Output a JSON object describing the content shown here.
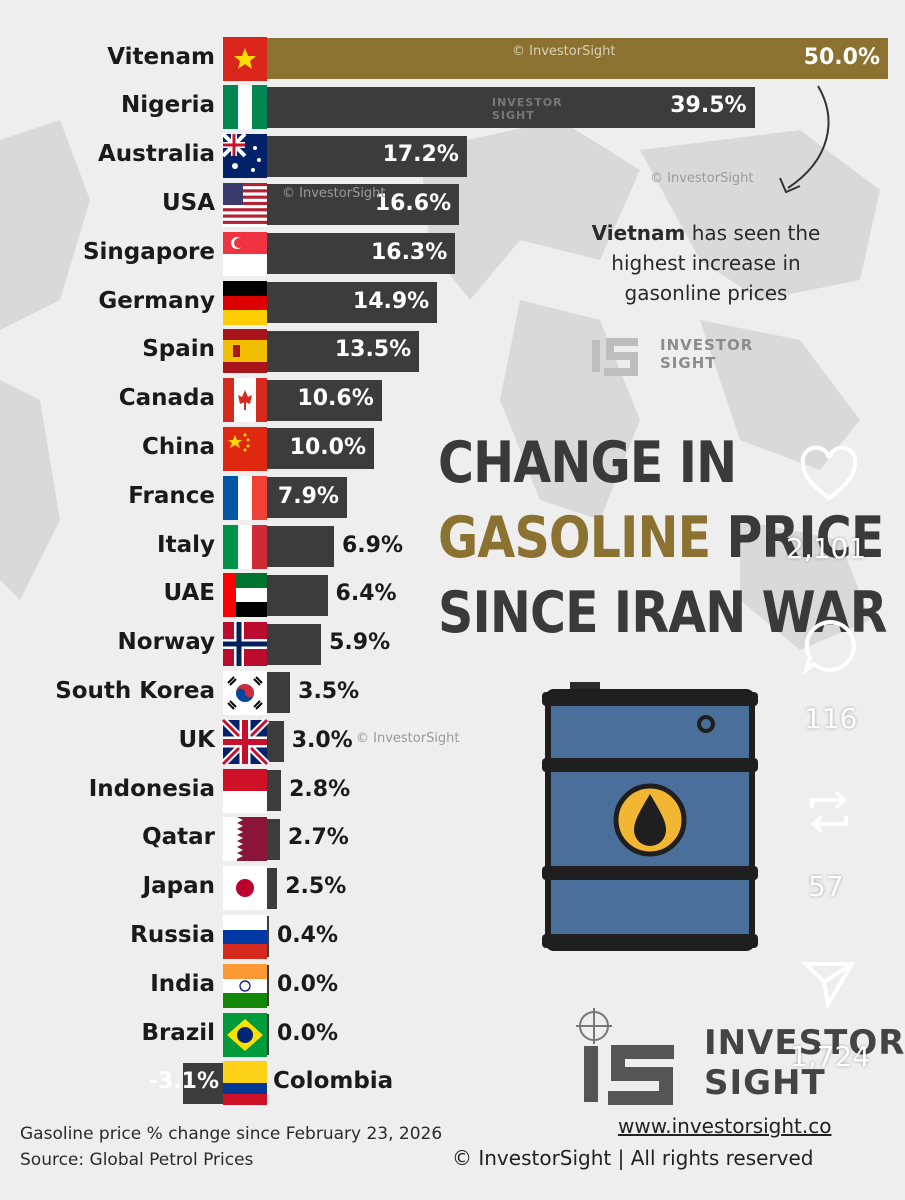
{
  "title": {
    "line1": "CHANGE IN",
    "line2_highlight": "GASOLINE",
    "line2_rest": " PRICE",
    "line3": "SINCE IRAN WAR"
  },
  "annotation": {
    "bold": "Vietnam",
    "text": " has seen the highest increase in gasonline prices"
  },
  "watermarks": {
    "text": "© InvestorSight",
    "logo_small": "INVESTOR SIGHT"
  },
  "brand": {
    "line1": "INVESTOR",
    "line2": "SIGHT",
    "website": "www.investorsight.co",
    "copyright": "© InvestorSight |  All rights reserved"
  },
  "footer": {
    "note": "Gasoline price % change since February 23, 2026",
    "source": "Source: Global Petrol Prices"
  },
  "social_overlay": {
    "likes": "2,101",
    "comments": "116",
    "reposts": "57",
    "shares": "1,724"
  },
  "colors": {
    "bar_default": "#3c3c3c",
    "bar_highlight": "#8b7230",
    "title_gold": "#8b7230",
    "barrel_blue": "#4a6f9b"
  },
  "chart_data": {
    "type": "bar",
    "orientation": "horizontal",
    "categories": [
      "Vitenam",
      "Nigeria",
      "Australia",
      "USA",
      "Singapore",
      "Germany",
      "Spain",
      "Canada",
      "China",
      "France",
      "Italy",
      "UAE",
      "Norway",
      "South Korea",
      "UK",
      "Indonesia",
      "Qatar",
      "Japan",
      "Russia",
      "India",
      "Brazil",
      "Colombia"
    ],
    "values": [
      50.0,
      39.5,
      17.2,
      16.6,
      16.3,
      14.9,
      13.5,
      10.6,
      10.0,
      7.9,
      6.9,
      6.4,
      5.9,
      3.5,
      3.0,
      2.8,
      2.7,
      2.5,
      0.4,
      0.0,
      0.0,
      -3.1
    ],
    "labels": [
      "50.0%",
      "39.5%",
      "17.2%",
      "16.6%",
      "16.3%",
      "14.9%",
      "13.5%",
      "10.6%",
      "10.0%",
      "7.9%",
      "6.9%",
      "6.4%",
      "5.9%",
      "3.5%",
      "3.0%",
      "2.8%",
      "2.7%",
      "2.5%",
      "0.4%",
      "0.0%",
      "0.0%",
      "-3.1%"
    ],
    "flags": [
      "vn",
      "ng",
      "au",
      "us",
      "sg",
      "de",
      "es",
      "ca",
      "cn",
      "fr",
      "it",
      "ae",
      "no",
      "kr",
      "uk",
      "id",
      "qa",
      "jp",
      "ru",
      "in",
      "br",
      "co"
    ],
    "highlight_index": 0,
    "title": "",
    "xlabel": "",
    "ylabel": "",
    "xlim": [
      -3.1,
      50.0
    ]
  }
}
